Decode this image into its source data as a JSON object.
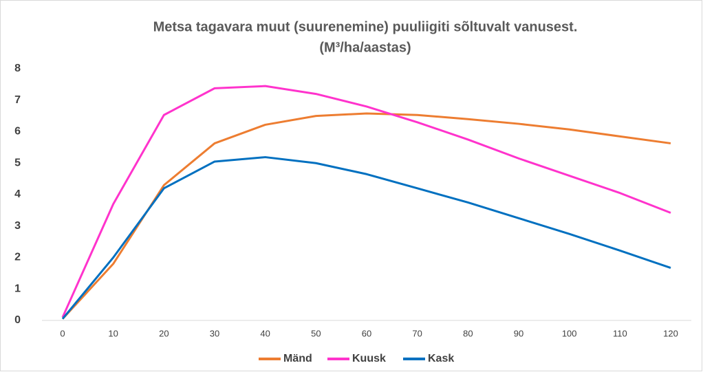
{
  "chart_data": {
    "type": "line",
    "title": [
      "Metsa tagavara muut (suurenemine) puuliigiti sõltuvalt vanusest.",
      "(M³/ha/aastas)"
    ],
    "x": [
      0,
      10,
      20,
      30,
      40,
      50,
      60,
      70,
      80,
      90,
      100,
      110,
      120
    ],
    "xlim": [
      0,
      120
    ],
    "xticks": [
      0,
      10,
      20,
      30,
      40,
      50,
      60,
      70,
      80,
      90,
      100,
      110,
      120
    ],
    "ylim": [
      0,
      8
    ],
    "yticks": [
      0,
      1,
      2,
      3,
      4,
      5,
      6,
      7,
      8
    ],
    "grid": false,
    "legend": "bottom",
    "series": [
      {
        "name": "Mänd",
        "color": "#ed7d31",
        "values": [
          0.05,
          1.8,
          4.3,
          5.63,
          6.22,
          6.5,
          6.58,
          6.53,
          6.4,
          6.25,
          6.07,
          5.85,
          5.63
        ]
      },
      {
        "name": "Kuusk",
        "color": "#ff33cc",
        "values": [
          0.1,
          3.7,
          6.53,
          7.38,
          7.45,
          7.2,
          6.8,
          6.3,
          5.75,
          5.15,
          4.6,
          4.05,
          3.42
        ]
      },
      {
        "name": "Kask",
        "color": "#0070c0",
        "values": [
          0.05,
          2.0,
          4.2,
          5.05,
          5.19,
          5.0,
          4.65,
          4.2,
          3.75,
          3.25,
          2.75,
          2.22,
          1.67
        ]
      }
    ]
  }
}
